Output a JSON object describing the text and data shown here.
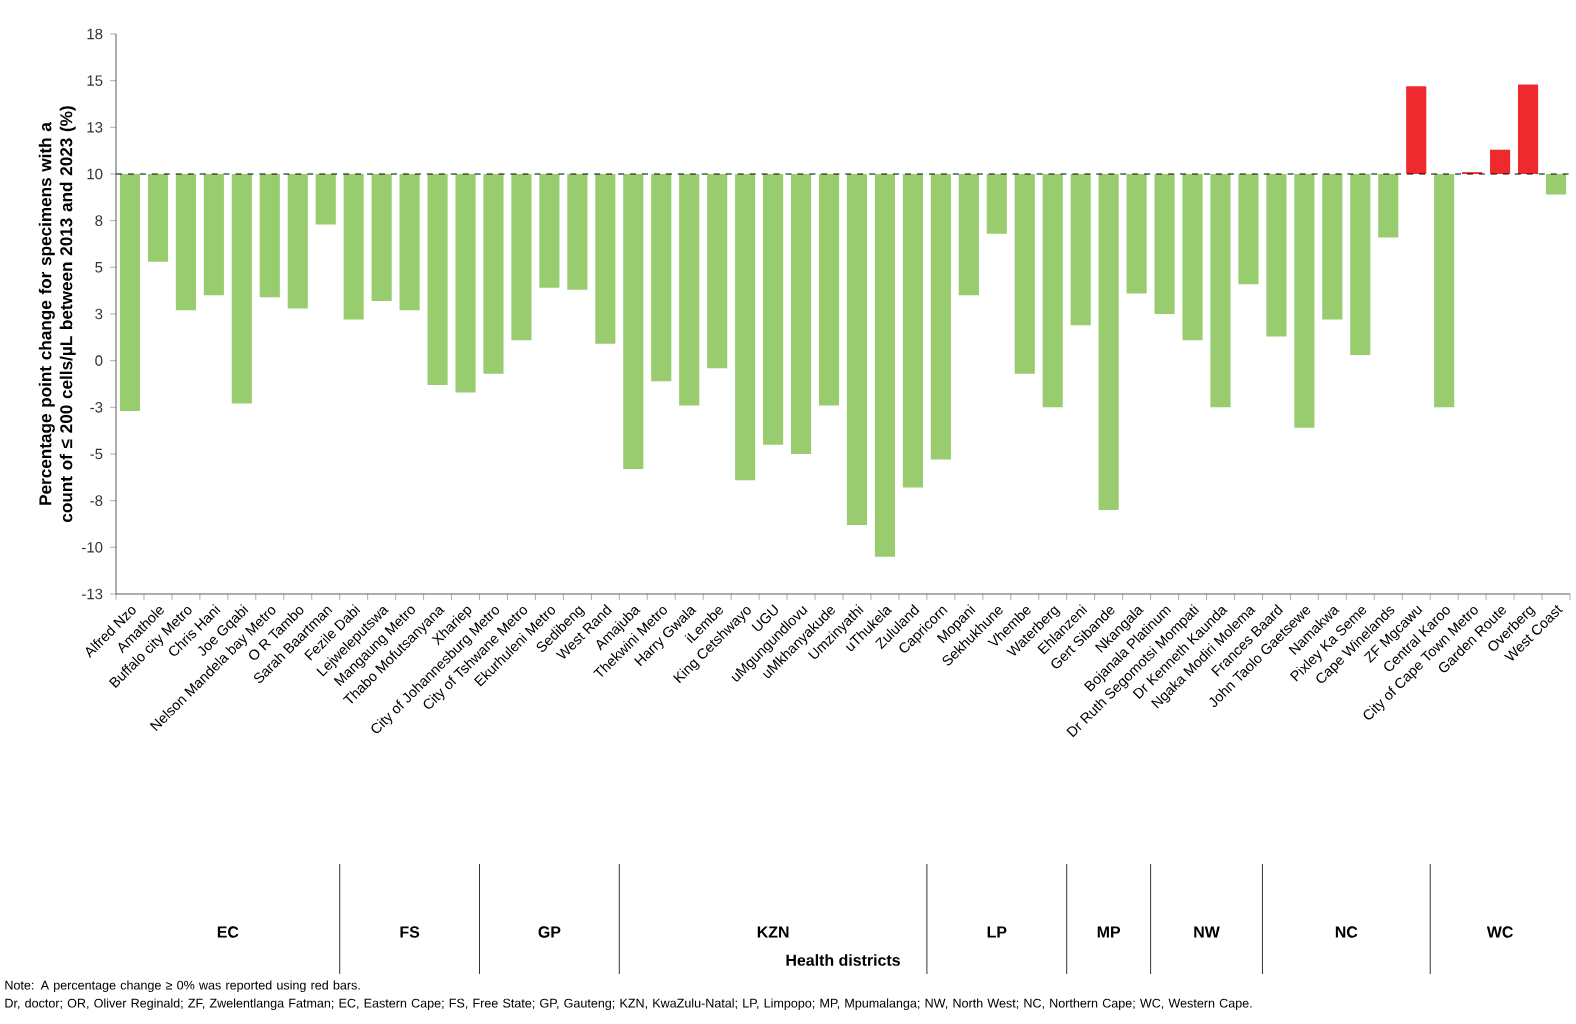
{
  "chart_data": {
    "type": "bar",
    "ylabel": "Percentage point change for specimens with a count of ≤ 200 cells/µL between 2013 and 2023 (%)",
    "categories": [
      "Alfred Nzo",
      "Amathole",
      "Buffalo city Metro",
      "Chris Hani",
      "Joe Gqabi",
      "Nelson Mandela bay Metro",
      "O R Tambo",
      "Sarah Baartman",
      "Fezile Dabi",
      "Lejweleputswa",
      "Mangaung Metro",
      "Thabo Mofutsanyana",
      "Xhariep",
      "City of Johannesburg Metro",
      "City of Tshwane Metro",
      "Ekurhuleni Metro",
      "Sedibeng",
      "West Rand",
      "Amajuba",
      "Thekwini Metro",
      "Harry Gwala",
      "iLembe",
      "King Cetshwayo",
      "UGU",
      "uMgungundlovu",
      "uMkhanyakude",
      "Umzinyathi",
      "uThukela",
      "Zululand",
      "Capricorn",
      "Mopani",
      "Sekhukhune",
      "Vhembe",
      "Waterberg",
      "Ehlanzeni",
      "Gert Sibande",
      "Nkangala",
      "Bojanala Platinum",
      "Dr Ruth Segomotsi Mompati",
      "Dr Kenneth Kaunda",
      "Ngaka Modiri Molema",
      "Frances Baard",
      "John Taolo Gaetsewe",
      "Namakwa",
      "Pixley Ka Seme",
      "Cape Winelands",
      "ZF Mgcawu",
      "Central Karoo",
      "City of Cape Town Metro",
      "Garden Route",
      "Overberg",
      "West Coast"
    ],
    "base": [
      10,
      10,
      10,
      10,
      10,
      10,
      10,
      10,
      10,
      10,
      10,
      10,
      10,
      10,
      10,
      10,
      10,
      10,
      10,
      10,
      10,
      10,
      10,
      10,
      10,
      10,
      10,
      10,
      10,
      10,
      10,
      10,
      10,
      10,
      10,
      10,
      10,
      10,
      10,
      10,
      10,
      10,
      10,
      10,
      10,
      10,
      10,
      10,
      10,
      10,
      10,
      10
    ],
    "values": [
      -12.7,
      -4.7,
      -7.3,
      -6.5,
      -12.3,
      -6.6,
      -7.2,
      -2.7,
      -7.8,
      -6.8,
      -7.3,
      -11.3,
      -11.7,
      -10.7,
      -8.9,
      -6.1,
      -6.2,
      -9.1,
      -15.8,
      -11.1,
      -12.4,
      -10.4,
      -16.4,
      -14.5,
      -15.0,
      -12.4,
      -18.8,
      -20.5,
      -16.8,
      -15.3,
      -6.5,
      -3.2,
      -10.7,
      -12.5,
      -8.1,
      -18.0,
      -6.4,
      -7.5,
      -8.9,
      -12.5,
      -5.9,
      -8.7,
      -13.6,
      -7.8,
      -9.7,
      -3.4,
      4.7,
      -12.5,
      0.1,
      1.3,
      4.8,
      -1.1
    ],
    "colors": [
      "#99cc6e",
      "#99cc6e",
      "#99cc6e",
      "#99cc6e",
      "#99cc6e",
      "#99cc6e",
      "#99cc6e",
      "#99cc6e",
      "#99cc6e",
      "#99cc6e",
      "#99cc6e",
      "#99cc6e",
      "#99cc6e",
      "#99cc6e",
      "#99cc6e",
      "#99cc6e",
      "#99cc6e",
      "#99cc6e",
      "#99cc6e",
      "#99cc6e",
      "#99cc6e",
      "#99cc6e",
      "#99cc6e",
      "#99cc6e",
      "#99cc6e",
      "#99cc6e",
      "#99cc6e",
      "#99cc6e",
      "#99cc6e",
      "#99cc6e",
      "#99cc6e",
      "#99cc6e",
      "#99cc6e",
      "#99cc6e",
      "#99cc6e",
      "#99cc6e",
      "#99cc6e",
      "#99cc6e",
      "#99cc6e",
      "#99cc6e",
      "#99cc6e",
      "#99cc6e",
      "#99cc6e",
      "#99cc6e",
      "#99cc6e",
      "#99cc6e",
      "#ee2a2e",
      "#99cc6e",
      "#ee2a2e",
      "#ee2a2e",
      "#ee2a2e",
      "#99cc6e"
    ],
    "ylim": [
      -12.5,
      17.5
    ],
    "yticks": [
      {
        "value": 17.5,
        "label": "18"
      },
      15,
      {
        "value": 12.5,
        "label": "13"
      },
      10,
      {
        "value": 7.5,
        "label": "8"
      },
      5,
      {
        "value": 2.5,
        "label": "3"
      },
      0,
      {
        "value": -2.5,
        "label": "-3"
      },
      -5,
      {
        "value": -7.5,
        "label": "-8"
      },
      -10,
      {
        "value": -12.5,
        "label": "-13"
      }
    ],
    "ref_lines": [
      {
        "axis": "y",
        "value": 10,
        "line_style": "dashed"
      }
    ],
    "annotations": [
      "EC",
      "FS",
      "GP",
      "KZN",
      "LP",
      "MP",
      "NW",
      "NC",
      "WC",
      "Health districts",
      "Note: A percentage change ≥ 0% was reported using red bars.",
      "Dr, doctor; OR, Oliver Reginald; ZF, Zwelentlanga Fatman; EC, Eastern Cape; FS, Free State; GP, Gauteng; KZN, KwaZulu-Natal; LP, Limpopo; MP, Mpumalanga; NW, North West; NC, Northern Cape; WC, Western Cape."
    ]
  }
}
